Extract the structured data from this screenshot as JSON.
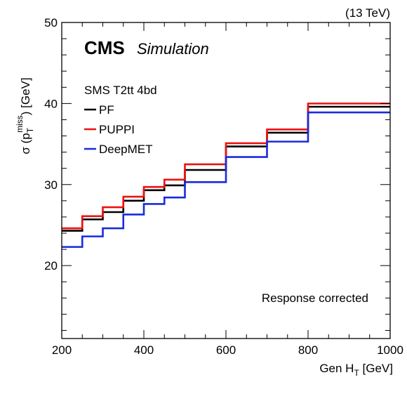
{
  "chart_data": {
    "type": "line",
    "style": "step",
    "energy_label": "(13 TeV)",
    "experiment_label": "CMS",
    "experiment_sublabel": "Simulation",
    "legend_header": "SMS T2tt 4bd",
    "annotation": "Response corrected",
    "ylabel": "σ (p_T^miss) [GeV]",
    "ylabel_parts": {
      "prefix": "σ (p",
      "sub": "T",
      "sup": "miss",
      "suffix": ") [GeV]"
    },
    "xlabel": "Gen H_T [GeV]",
    "xlabel_parts": {
      "prefix": "Gen H",
      "sub": "T",
      "suffix": " [GeV]"
    },
    "xlim": [
      200,
      1000
    ],
    "ylim": [
      11,
      50
    ],
    "x_ticks": [
      200,
      400,
      600,
      800,
      1000
    ],
    "y_ticks": [
      20,
      30,
      40,
      50
    ],
    "legend_placement": "upper-left",
    "bin_edges": [
      200,
      250,
      300,
      350,
      400,
      450,
      500,
      600,
      700,
      800,
      1000
    ],
    "series": [
      {
        "name": "PF",
        "color": "#000000",
        "values": [
          24.3,
          25.7,
          26.6,
          28.0,
          29.3,
          29.9,
          31.8,
          34.7,
          36.4,
          39.6
        ]
      },
      {
        "name": "PUPPI",
        "color": "#ee1111",
        "values": [
          24.6,
          26.1,
          27.2,
          28.5,
          29.7,
          30.6,
          32.5,
          35.1,
          36.8,
          40.0
        ]
      },
      {
        "name": "DeepMET",
        "color": "#1a2bdc",
        "values": [
          22.3,
          23.6,
          24.6,
          26.3,
          27.6,
          28.4,
          30.3,
          33.4,
          35.3,
          38.9
        ]
      }
    ]
  }
}
